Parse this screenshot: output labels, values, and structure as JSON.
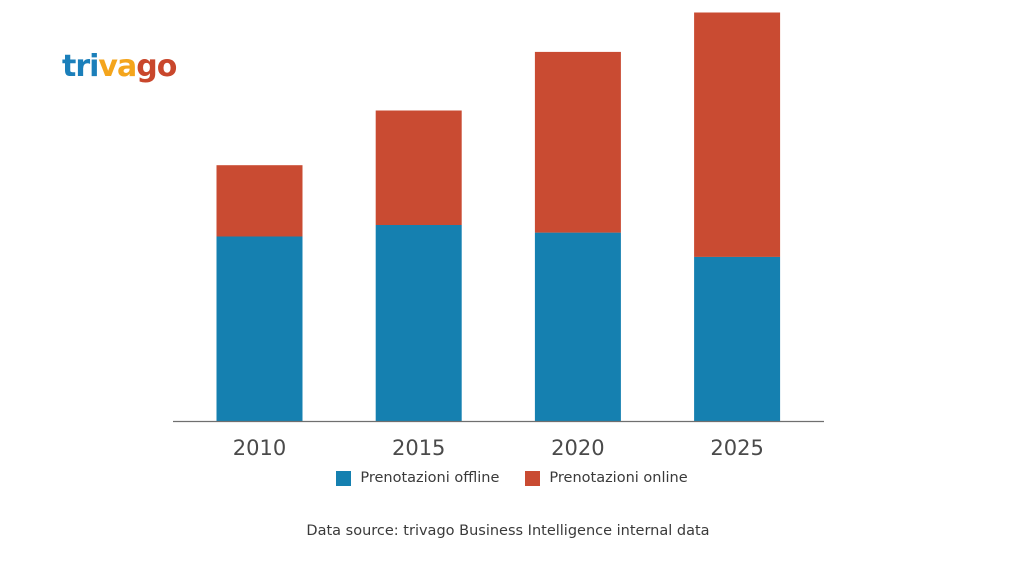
{
  "logo": {
    "part1": "tri",
    "part2": "va",
    "part3": "go"
  },
  "colors": {
    "offline": "#1580b0",
    "online": "#c94b32",
    "axis": "#6f6f6f"
  },
  "chart_data": {
    "type": "bar",
    "stacked": true,
    "categories": [
      "2010",
      "2015",
      "2020",
      "2025"
    ],
    "series": [
      {
        "name": "Prenotazioni offline",
        "values": [
          145,
          154,
          148,
          129
        ]
      },
      {
        "name": "Prenotazioni online",
        "values": [
          56,
          90,
          142,
          192
        ]
      }
    ],
    "ylim": [
      0,
      330
    ],
    "title": "",
    "xlabel": "",
    "ylabel": "",
    "grid": false,
    "legend": "bottom-center"
  },
  "legend": {
    "offline_label": "Prenotazioni offline",
    "online_label": "Prenotazioni online"
  },
  "source": "Data source: trivago Business Intelligence internal data"
}
